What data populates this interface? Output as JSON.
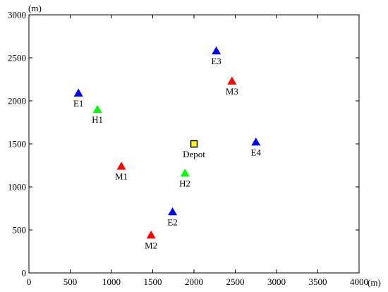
{
  "chart_data": {
    "type": "scatter",
    "xlabel": "(m)",
    "ylabel": "(m)",
    "xlim": [
      0,
      4000
    ],
    "ylim": [
      0,
      3000
    ],
    "x_ticks": [
      0,
      500,
      1000,
      1500,
      2000,
      2500,
      3000,
      3500,
      4000
    ],
    "y_ticks": [
      0,
      500,
      1000,
      1500,
      2000,
      2500,
      3000
    ],
    "grid": false,
    "colors": {
      "E": "#0000ff",
      "H": "#00ff00",
      "M": "#ff0000",
      "Depot": "#ffff00"
    },
    "points": [
      {
        "label": "E1",
        "x": 600,
        "y": 2090,
        "marker": "triangle",
        "group": "E"
      },
      {
        "label": "H1",
        "x": 830,
        "y": 1900,
        "marker": "triangle",
        "group": "H"
      },
      {
        "label": "M1",
        "x": 1120,
        "y": 1240,
        "marker": "triangle",
        "group": "M"
      },
      {
        "label": "M2",
        "x": 1480,
        "y": 440,
        "marker": "triangle",
        "group": "M"
      },
      {
        "label": "E2",
        "x": 1740,
        "y": 710,
        "marker": "triangle",
        "group": "E"
      },
      {
        "label": "H2",
        "x": 1890,
        "y": 1160,
        "marker": "triangle",
        "group": "H"
      },
      {
        "label": "Depot",
        "x": 2000,
        "y": 1500,
        "marker": "square",
        "group": "Depot"
      },
      {
        "label": "E3",
        "x": 2270,
        "y": 2580,
        "marker": "triangle",
        "group": "E"
      },
      {
        "label": "M3",
        "x": 2460,
        "y": 2230,
        "marker": "triangle",
        "group": "M"
      },
      {
        "label": "E4",
        "x": 2750,
        "y": 1520,
        "marker": "triangle",
        "group": "E"
      }
    ]
  }
}
